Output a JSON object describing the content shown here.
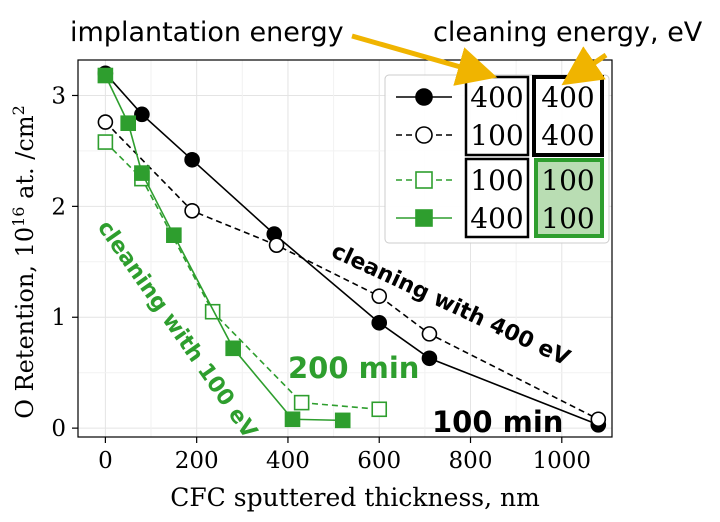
{
  "chart_data": {
    "type": "line",
    "xlabel": "CFC sputtered thickness, nm",
    "ylabel_main": "O Retention, 10",
    "ylabel_sup": "16",
    "ylabel_unit": " at. /cm",
    "ylabel_unit_sup": "2",
    "xlim": [
      -60,
      1110
    ],
    "ylim": [
      -0.08,
      3.32
    ],
    "xticks": [
      0,
      200,
      400,
      600,
      800,
      1000
    ],
    "yticks": [
      0,
      1,
      2,
      3
    ],
    "grid": true,
    "legend_position": "top-right",
    "series": [
      {
        "implantation_energy": "400",
        "cleaning_energy": "400",
        "color": "#000000",
        "linestyle": "solid",
        "marker": "circle",
        "filled": true,
        "x": [
          0,
          80,
          190,
          370,
          600,
          710,
          1080
        ],
        "y": [
          3.2,
          2.83,
          2.42,
          1.75,
          0.95,
          0.63,
          0.03
        ]
      },
      {
        "implantation_energy": "100",
        "cleaning_energy": "400",
        "color": "#000000",
        "linestyle": "dashed",
        "marker": "circle",
        "filled": false,
        "x": [
          0,
          190,
          375,
          600,
          710,
          1080
        ],
        "y": [
          2.76,
          1.96,
          1.65,
          1.19,
          0.85,
          0.08
        ]
      },
      {
        "implantation_energy": "100",
        "cleaning_energy": "100",
        "color": "#2e9e2e",
        "linestyle": "dashed",
        "marker": "square",
        "filled": false,
        "x": [
          0,
          80,
          235,
          430,
          600
        ],
        "y": [
          2.58,
          2.25,
          1.05,
          0.23,
          0.17
        ]
      },
      {
        "implantation_energy": "400",
        "cleaning_energy": "100",
        "color": "#2e9e2e",
        "linestyle": "solid",
        "marker": "square",
        "filled": true,
        "x": [
          0,
          50,
          80,
          150,
          280,
          410,
          520
        ],
        "y": [
          3.18,
          2.75,
          2.3,
          1.74,
          0.72,
          0.08,
          0.07
        ]
      }
    ],
    "annotations": {
      "implantation_energy": "implantation energy",
      "cleaning_energy": "cleaning energy, eV",
      "cleaning_100": "cleaning with 100 eV",
      "cleaning_400": "cleaning with 400 eV",
      "time_200": "200 min",
      "time_100": "100 min"
    },
    "colors": {
      "green": "#2e9e2e",
      "arrow": "#f0b400",
      "highlight_fill": "#b9ddb3"
    }
  }
}
